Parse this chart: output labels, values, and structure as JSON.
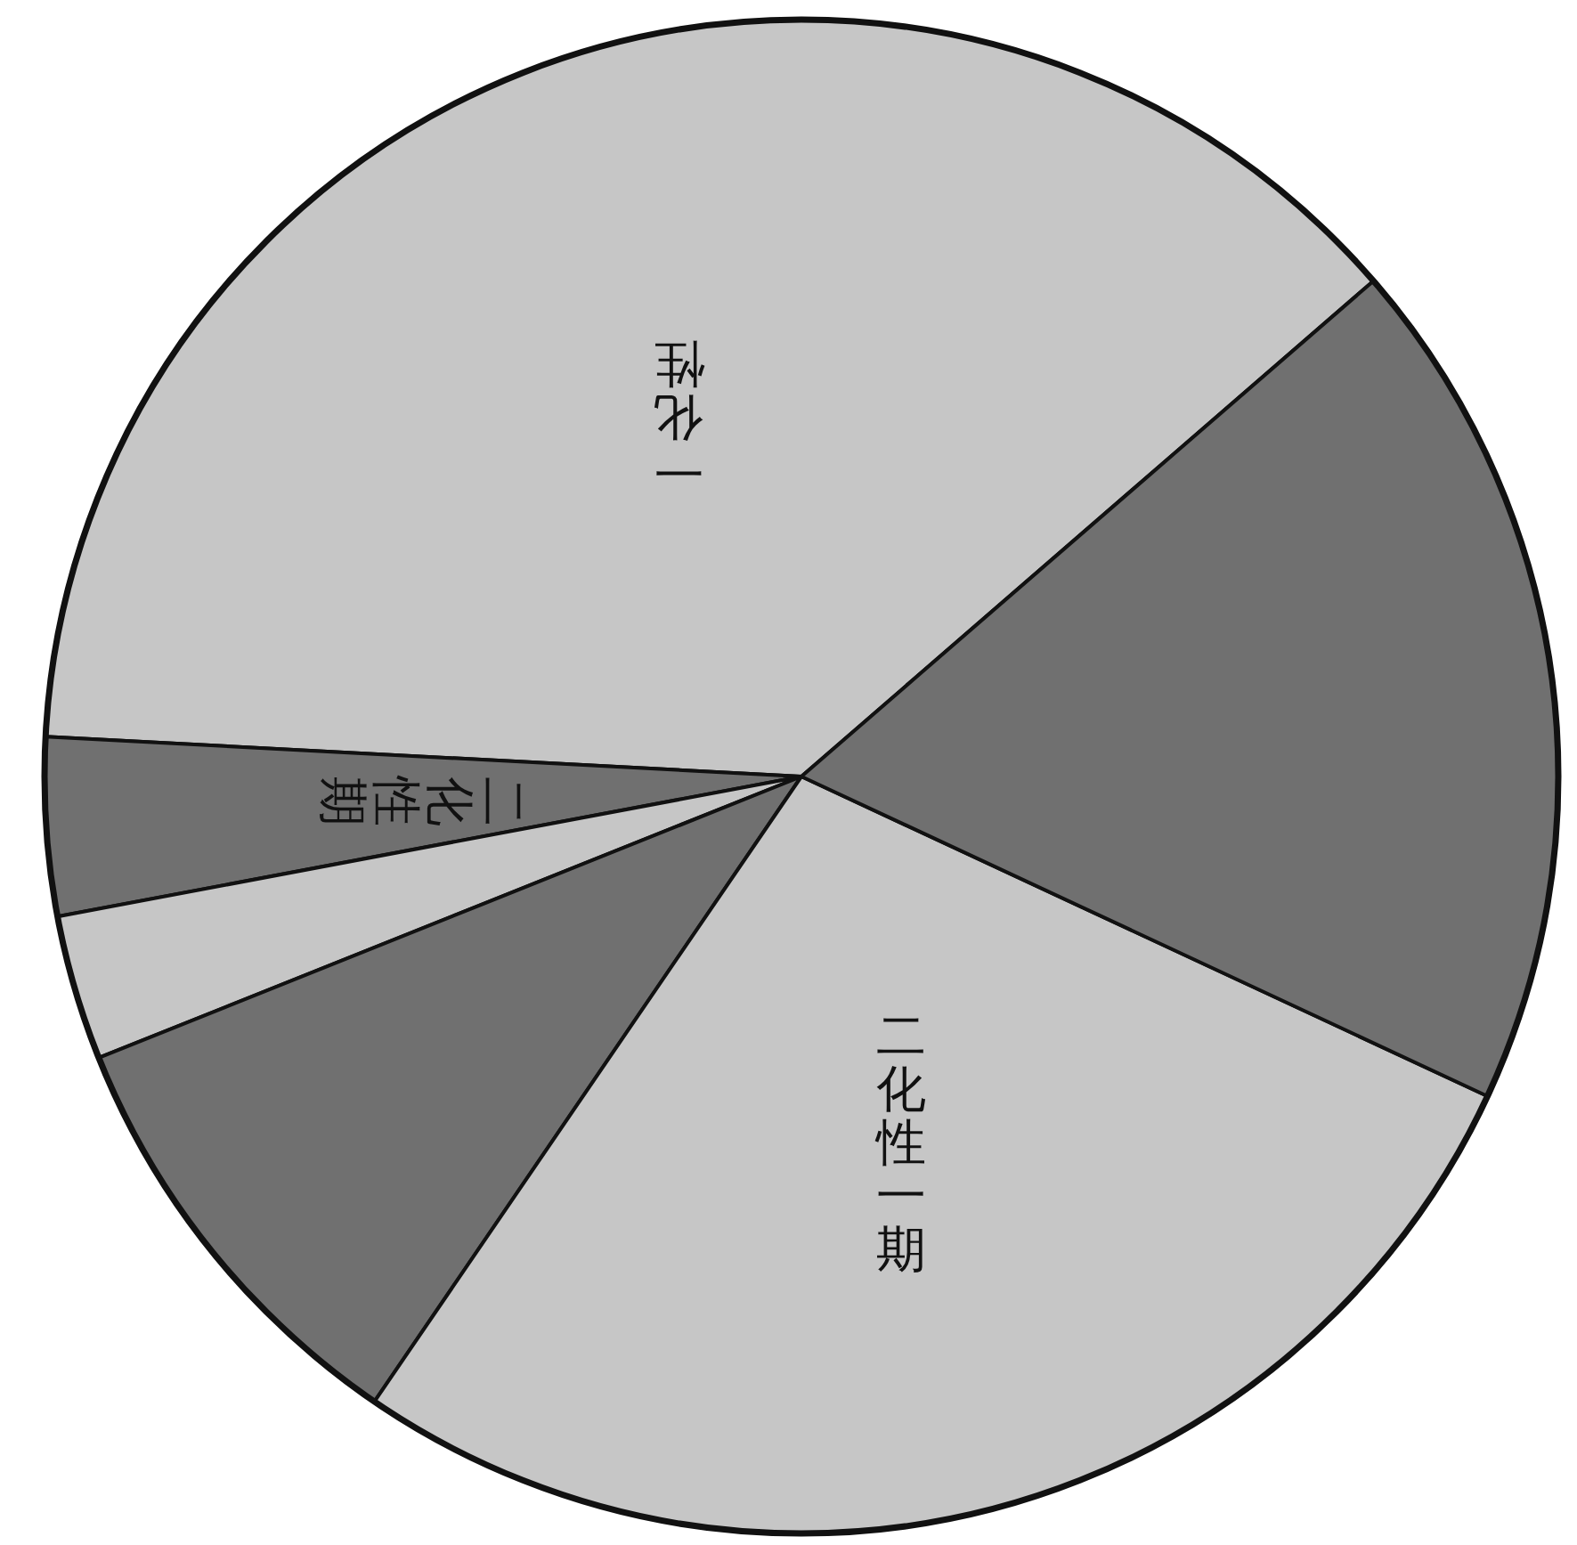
{
  "chart_data": {
    "type": "pie",
    "categories": [
      "一化性",
      "二化性期",
      null,
      null,
      "二化性一期",
      null
    ],
    "values": [
      37.8,
      3.8,
      3.1,
      9.4,
      27.6,
      18.3
    ],
    "colors": [
      "#c6c6c6",
      "#707070",
      "#c6c6c6",
      "#707070",
      "#c6c6c6",
      "#707070"
    ]
  }
}
